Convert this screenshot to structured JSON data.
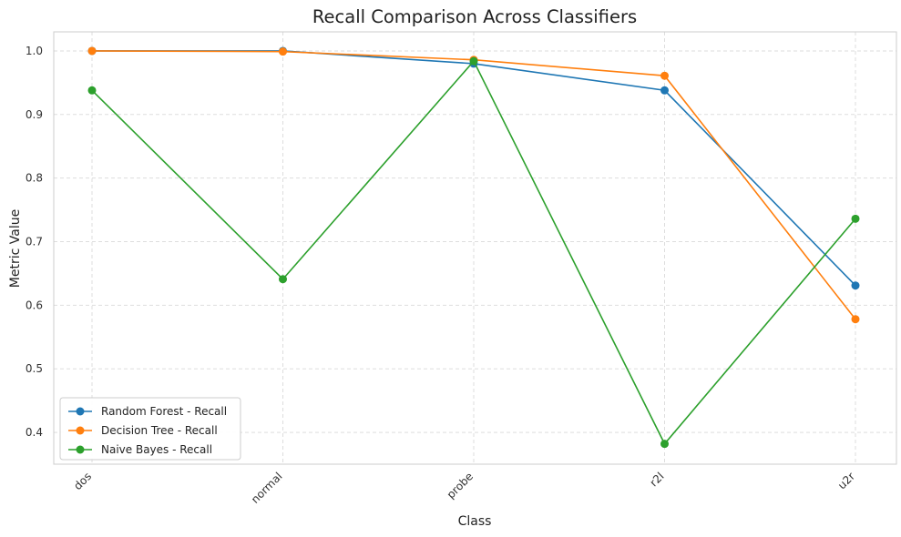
{
  "chart_data": {
    "type": "line",
    "title": "Recall Comparison Across Classifiers",
    "xlabel": "Class",
    "ylabel": "Metric Value",
    "categories": [
      "dos",
      "normal",
      "probe",
      "r2l",
      "u2r"
    ],
    "yticks": [
      0.4,
      0.5,
      0.6,
      0.7,
      0.8,
      0.9,
      1.0
    ],
    "ytick_labels": [
      "0.4",
      "0.5",
      "0.6",
      "0.7",
      "0.8",
      "0.9",
      "1.0"
    ],
    "ylim": [
      0.35,
      1.03
    ],
    "grid": true,
    "legend_position": "lower-left",
    "series": [
      {
        "name": "Random Forest - Recall",
        "color": "#1f77b4",
        "values": [
          1.0,
          1.0,
          0.98,
          0.938,
          0.631
        ]
      },
      {
        "name": "Decision Tree - Recall",
        "color": "#ff7f0e",
        "values": [
          1.0,
          0.999,
          0.986,
          0.961,
          0.578
        ]
      },
      {
        "name": "Naive Bayes - Recall",
        "color": "#2ca02c",
        "values": [
          0.938,
          0.641,
          0.984,
          0.382,
          0.736
        ]
      }
    ]
  }
}
